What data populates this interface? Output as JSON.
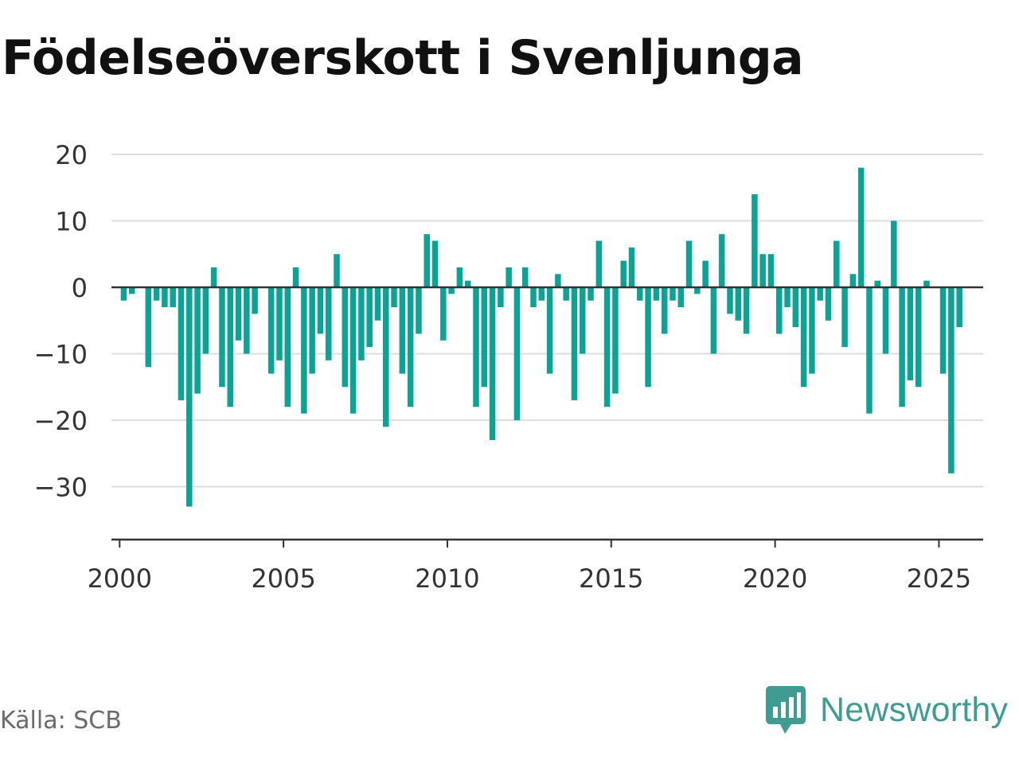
{
  "title": "Födelseöverskott i Svenljunga",
  "source": "Källa: SCB",
  "brand": {
    "name": "Newsworthy",
    "icon": "newsworthy-logo-icon",
    "color": "#3f9c93"
  },
  "colors": {
    "bar": "#0aa396",
    "grid": "#dddddd",
    "zero_line": "#333333",
    "axis": "#333333",
    "text": "#333333"
  },
  "chart_data": {
    "type": "bar",
    "title": "Födelseöverskott i Svenljunga",
    "frequency": "quarterly",
    "x_start": "2000 Q1",
    "yticks": [
      "20",
      "10",
      "0",
      "−10",
      "−20",
      "−30"
    ],
    "xticks": [
      "2000",
      "2005",
      "2010",
      "2015",
      "2020",
      "2025"
    ],
    "ylim": [
      -38,
      20
    ],
    "xlim": [
      1999.75,
      2026.35
    ],
    "grid": true,
    "legend": "none",
    "values": [
      -2,
      -1,
      0,
      -12,
      -2,
      -3,
      -3,
      -17,
      -33,
      -16,
      -10,
      3,
      -15,
      -18,
      -8,
      -10,
      -4,
      0,
      -13,
      -11,
      -18,
      3,
      -19,
      -13,
      -7,
      -11,
      5,
      -15,
      -19,
      -11,
      -9,
      -5,
      -21,
      -3,
      -13,
      -18,
      -7,
      8,
      7,
      -8,
      -1,
      3,
      1,
      -18,
      -15,
      -23,
      -3,
      3,
      -20,
      3,
      -3,
      -2,
      -13,
      2,
      -2,
      -17,
      -10,
      -2,
      7,
      -18,
      -16,
      4,
      6,
      -2,
      -15,
      -2,
      -7,
      -2,
      -3,
      7,
      -1,
      4,
      -10,
      8,
      -4,
      -5,
      -7,
      14,
      5,
      5,
      -7,
      -3,
      -6,
      -15,
      -13,
      -2,
      -5,
      7,
      -9,
      2,
      18,
      -19,
      1,
      -10,
      10,
      -18,
      -14,
      -15,
      1,
      0,
      -13,
      -28,
      -6
    ]
  }
}
